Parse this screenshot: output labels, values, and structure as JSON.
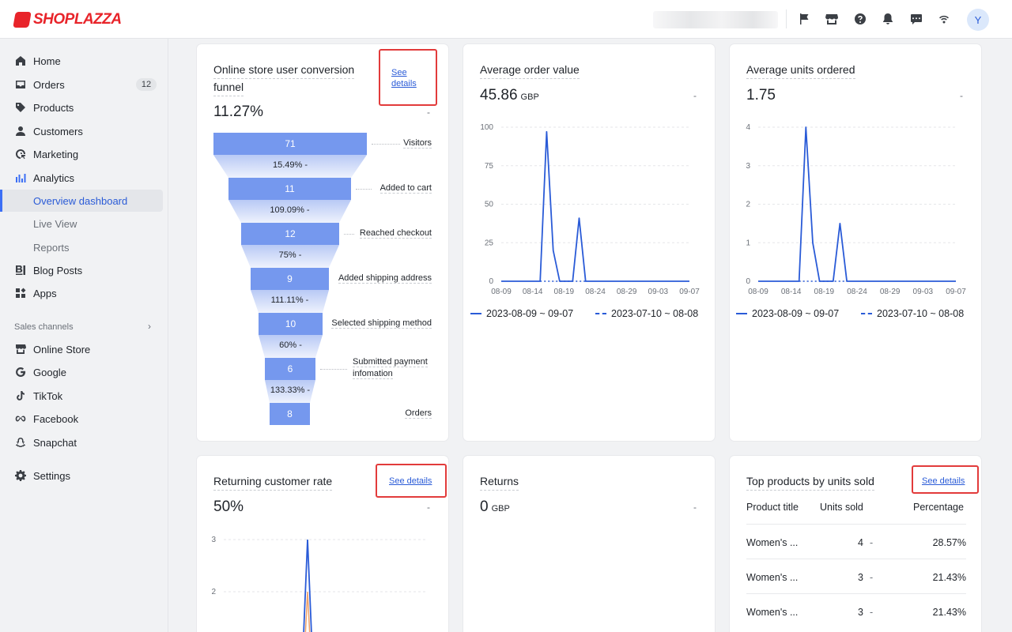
{
  "brand": {
    "name": "SHOPLAZZA",
    "color": "#e8242a"
  },
  "topbar": {
    "icons": [
      "flag-icon",
      "store-icon",
      "help-icon",
      "bell-icon",
      "chat-icon",
      "wifi-icon"
    ],
    "avatar_initial": "Y"
  },
  "sidebar": {
    "items": [
      {
        "label": "Home",
        "icon": "home-icon"
      },
      {
        "label": "Orders",
        "icon": "orders-icon",
        "badge": "12"
      },
      {
        "label": "Products",
        "icon": "tag-icon"
      },
      {
        "label": "Customers",
        "icon": "person-icon"
      },
      {
        "label": "Marketing",
        "icon": "target-icon"
      },
      {
        "label": "Analytics",
        "icon": "bar-chart-icon"
      },
      {
        "label": "Overview dashboard",
        "sub": true,
        "active": true
      },
      {
        "label": "Live View",
        "sub": true
      },
      {
        "label": "Reports",
        "sub": true
      },
      {
        "label": "Blog Posts",
        "icon": "blog-icon"
      },
      {
        "label": "Apps",
        "icon": "apps-icon"
      }
    ],
    "sales_channels_label": "Sales channels",
    "channels": [
      {
        "label": "Online Store",
        "icon": "store-icon"
      },
      {
        "label": "Google",
        "icon": "google-icon"
      },
      {
        "label": "TikTok",
        "icon": "tiktok-icon"
      },
      {
        "label": "Facebook",
        "icon": "meta-icon"
      },
      {
        "label": "Snapchat",
        "icon": "snapchat-icon"
      }
    ],
    "settings_label": "Settings"
  },
  "funnel_card": {
    "title_line1": "Online store user conversion",
    "title_line2": "funnel",
    "value": "11.27%",
    "dash": "-",
    "see_details": [
      "See",
      "details"
    ],
    "steps": [
      {
        "count": "71",
        "label": "Visitors"
      },
      {
        "count": "11",
        "label": "Added to cart"
      },
      {
        "count": "12",
        "label": "Reached checkout"
      },
      {
        "count": "9",
        "label": "Added shipping address"
      },
      {
        "count": "10",
        "label": "Selected shipping method"
      },
      {
        "count": "6",
        "label": "Submitted payment",
        "label2": "infomation"
      },
      {
        "count": "8",
        "label": "Orders"
      }
    ],
    "rates": [
      "15.49% -",
      "109.09% -",
      "75% -",
      "111.11% -",
      "60% -",
      "133.33% -"
    ]
  },
  "aov_card": {
    "title": "Average order value",
    "value": "45.86",
    "unit": "GBP",
    "dash": "-"
  },
  "units_card": {
    "title": "Average units ordered",
    "value": "1.75",
    "dash": "-"
  },
  "returning_card": {
    "title": "Returning customer rate",
    "value": "50%",
    "dash": "-",
    "see_details": "See details"
  },
  "returns_card": {
    "title": "Returns",
    "value": "0",
    "unit": "GBP",
    "dash": "-"
  },
  "top_products_card": {
    "title": "Top products by units sold",
    "see_details": "See details",
    "columns": [
      "Product title",
      "Units sold",
      "Percentage"
    ],
    "rows": [
      {
        "title": "Women's ...",
        "units": "4",
        "dash": "-",
        "pct": "28.57%"
      },
      {
        "title": "Women's ...",
        "units": "3",
        "dash": "-",
        "pct": "21.43%"
      },
      {
        "title": "Women's ...",
        "units": "3",
        "dash": "-",
        "pct": "21.43%"
      }
    ]
  },
  "chart_data": [
    {
      "type": "line",
      "x": [
        "08-09",
        "08-10",
        "08-11",
        "08-12",
        "08-13",
        "08-14",
        "08-15",
        "08-16",
        "08-17",
        "08-18",
        "08-19",
        "08-20",
        "08-21",
        "08-22",
        "08-23",
        "08-24",
        "08-25",
        "08-26",
        "08-27",
        "08-28",
        "08-29",
        "08-30",
        "08-31",
        "09-01",
        "09-02",
        "09-03",
        "09-04",
        "09-05",
        "09-06",
        "09-07"
      ],
      "xticks": [
        "08-09",
        "08-14",
        "08-19",
        "08-24",
        "08-29",
        "09-03",
        "09-07"
      ],
      "yticks": [
        "0",
        "25",
        "50",
        "75",
        "100"
      ],
      "ylim": [
        0,
        100
      ],
      "series": [
        {
          "name": "2023-08-09 ~ 09-07",
          "style": "solid",
          "values": [
            0,
            0,
            0,
            0,
            0,
            0,
            0,
            0,
            0,
            0,
            0,
            0,
            0,
            0,
            0,
            0,
            0,
            0,
            0,
            0,
            0,
            0,
            0,
            0,
            0,
            0,
            0,
            0,
            0,
            0
          ],
          "raw_points": [
            [
              0,
              0
            ],
            [
              6,
              0
            ],
            [
              7,
              97
            ],
            [
              8,
              20
            ],
            [
              9,
              0
            ],
            [
              11,
              0
            ],
            [
              12,
              41
            ],
            [
              13,
              0
            ],
            [
              29,
              0
            ]
          ]
        },
        {
          "name": "2023-07-10 ~ 08-08",
          "style": "dashed",
          "raw_points": [
            [
              6,
              0
            ],
            [
              13,
              0
            ]
          ]
        }
      ]
    },
    {
      "type": "line",
      "xticks": [
        "08-09",
        "08-14",
        "08-19",
        "08-24",
        "08-29",
        "09-03",
        "09-07"
      ],
      "yticks": [
        "0",
        "1",
        "2",
        "3",
        "4"
      ],
      "ylim": [
        0,
        4
      ],
      "series": [
        {
          "name": "2023-08-09 ~ 09-07",
          "style": "solid",
          "raw_points": [
            [
              0,
              0
            ],
            [
              6,
              0
            ],
            [
              7,
              4
            ],
            [
              8,
              1
            ],
            [
              9,
              0
            ],
            [
              11,
              0
            ],
            [
              12,
              1.5
            ],
            [
              13,
              0
            ],
            [
              29,
              0
            ]
          ]
        },
        {
          "name": "2023-07-10 ~ 08-08",
          "style": "dashed",
          "raw_points": [
            [
              6,
              0
            ],
            [
              13,
              0
            ]
          ]
        }
      ]
    },
    {
      "type": "line",
      "yticks": [
        "2",
        "3"
      ],
      "ylim": [
        0,
        3
      ],
      "series": [
        {
          "style": "solid",
          "color": "#2a5bd7",
          "raw_points": [
            [
              7,
              3
            ]
          ]
        },
        {
          "style": "solid",
          "color": "#f0a36a",
          "raw_points": [
            [
              7,
              2
            ]
          ]
        }
      ]
    }
  ]
}
